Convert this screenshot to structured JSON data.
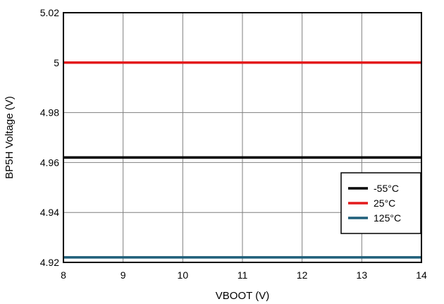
{
  "chart_data": {
    "type": "line",
    "title": "",
    "xlabel": "VBOOT (V)",
    "ylabel": "BP5H Voltage (V)",
    "xlim": [
      8,
      14
    ],
    "ylim": [
      4.92,
      5.02
    ],
    "x_ticks": [
      8,
      9,
      10,
      11,
      12,
      13,
      14
    ],
    "x_tick_labels": [
      "8",
      "9",
      "10",
      "11",
      "12",
      "13",
      "14"
    ],
    "y_ticks": [
      4.92,
      4.94,
      4.96,
      4.98,
      5.0,
      5.02
    ],
    "y_tick_labels": [
      "4.92",
      "4.94",
      "4.96",
      "4.98",
      "5",
      "5.02"
    ],
    "grid": true,
    "legend_position": "right",
    "series": [
      {
        "name": "-55°C",
        "color": "#000000",
        "x": [
          8,
          14
        ],
        "y": [
          4.962,
          4.962
        ]
      },
      {
        "name": "25°C",
        "color": "#e31a1c",
        "x": [
          8,
          14
        ],
        "y": [
          5.0,
          5.0
        ]
      },
      {
        "name": "125°C",
        "color": "#1f5f7a",
        "x": [
          8,
          14
        ],
        "y": [
          4.922,
          4.922
        ]
      }
    ]
  }
}
